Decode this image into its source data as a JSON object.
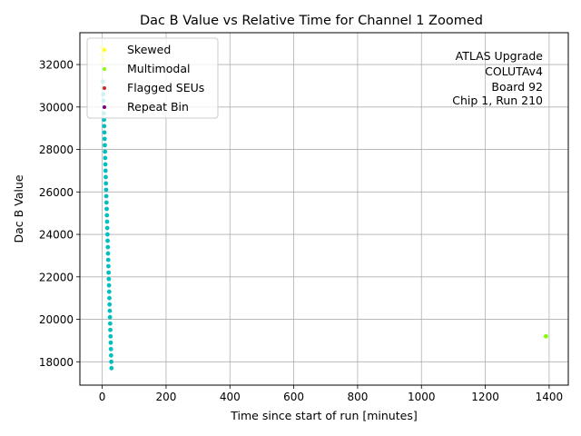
{
  "chart_data": {
    "type": "scatter",
    "title": "Dac B Value vs Relative Time for Channel 1 Zoomed",
    "xlabel": "Time since start of run [minutes]",
    "ylabel": "Dac B Value",
    "xlim": [
      -70,
      1460
    ],
    "ylim": [
      16900,
      33500
    ],
    "xticks": [
      0,
      200,
      400,
      600,
      800,
      1000,
      1200,
      1400
    ],
    "yticks": [
      18000,
      20000,
      22000,
      24000,
      26000,
      28000,
      30000,
      32000
    ],
    "xtick_labels": [
      "0",
      "200",
      "400",
      "600",
      "800",
      "1000",
      "1200",
      "1400"
    ],
    "ytick_labels": [
      "18000",
      "20000",
      "22000",
      "24000",
      "26000",
      "28000",
      "30000",
      "32000"
    ],
    "grid": true,
    "legend_position": "top-left",
    "annotation": [
      "ATLAS Upgrade",
      "COLUTAv4",
      "Board 92",
      "Chip 1, Run 210"
    ],
    "series": [
      {
        "name": "Skewed",
        "color": "#ffff00",
        "x": [
          0,
          1,
          2
        ],
        "y": [
          32800,
          32500,
          32200
        ]
      },
      {
        "name": "Multimodal",
        "color": "#7fff00",
        "x": [
          1390
        ],
        "y": [
          19200
        ]
      },
      {
        "name": "Flagged SEUs",
        "color": "#d62728",
        "x": [],
        "y": []
      },
      {
        "name": "Repeat Bin",
        "color": "#800080",
        "x": [],
        "y": []
      },
      {
        "color": "#00bfbf",
        "x": [
          2,
          2.6,
          3.2,
          3.8,
          4.4,
          5,
          5.6,
          6.2,
          6.8,
          7.4,
          8,
          8.6,
          9.2,
          9.8,
          10.4,
          11,
          11.6,
          12.2,
          12.8,
          13.4,
          14,
          14.6,
          15.2,
          15.8,
          16.4,
          17,
          17.6,
          18.2,
          18.8,
          19.4,
          20,
          20.6,
          21.2,
          21.8,
          22.4,
          23,
          23.6,
          24.2,
          24.8,
          25.4,
          26,
          26.6,
          27.2,
          27.8,
          28.4,
          29
        ],
        "y": [
          31200,
          30900,
          30600,
          30300,
          30000,
          29700,
          29400,
          29100,
          28800,
          28500,
          28200,
          27900,
          27600,
          27300,
          27000,
          26700,
          26400,
          26100,
          25800,
          25500,
          25200,
          24900,
          24600,
          24300,
          24000,
          23700,
          23400,
          23100,
          22800,
          22500,
          22200,
          21900,
          21600,
          21300,
          21000,
          20700,
          20400,
          20100,
          19800,
          19500,
          19200,
          18900,
          18600,
          18300,
          18000,
          17700
        ]
      }
    ]
  }
}
